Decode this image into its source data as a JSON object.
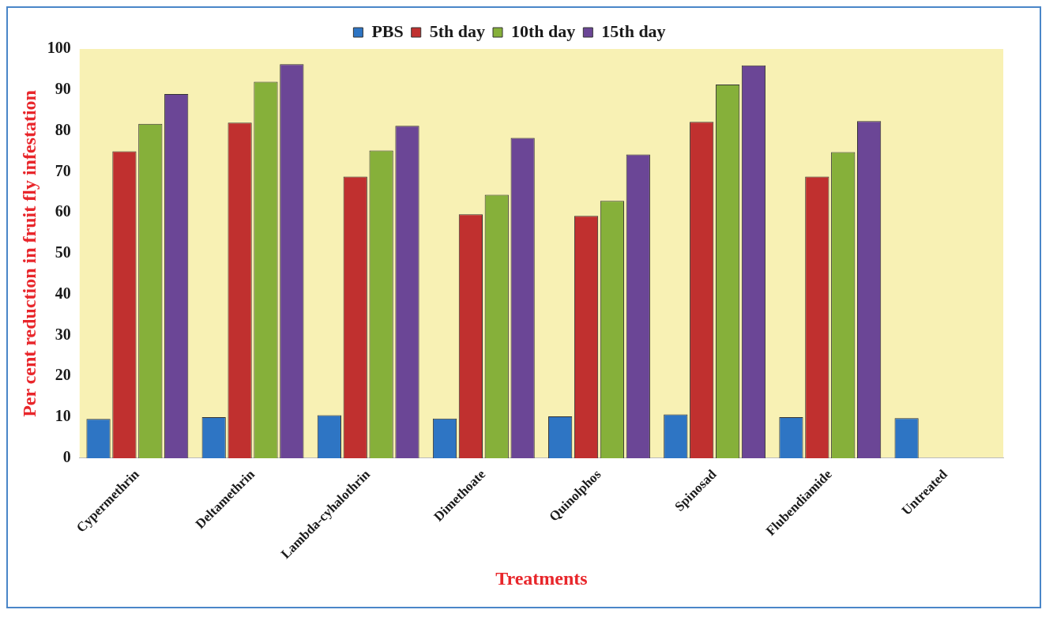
{
  "chart_data": {
    "type": "bar",
    "xlabel": "Treatments",
    "ylabel": "Per cent reduction in fruit fly infestation",
    "categories": [
      "Cypermethrin",
      "Deltamethrin",
      "Lambda-cyhalothrin",
      "Dimethoate",
      "Quinolphos",
      "Spinosad",
      "Flubendiamide",
      "Untreated"
    ],
    "series": [
      {
        "name": "PBS",
        "color": "#2e75c4",
        "values": [
          9.6,
          10,
          10.5,
          9.7,
          10.2,
          10.7,
          10,
          9.8
        ]
      },
      {
        "name": "5th day",
        "color": "#c0302f",
        "values": [
          75,
          82,
          68.8,
          59.6,
          59.2,
          82.2,
          68.8,
          null
        ]
      },
      {
        "name": "10th day",
        "color": "#86b03a",
        "values": [
          81.7,
          92,
          75.2,
          64.4,
          62.9,
          91.3,
          74.8,
          null
        ]
      },
      {
        "name": "15th day",
        "color": "#6b4696",
        "values": [
          89,
          96.3,
          81.2,
          78.3,
          74.2,
          96,
          82.4,
          null
        ]
      }
    ],
    "ylim": [
      0,
      100
    ],
    "yticks": [
      0,
      10,
      20,
      30,
      40,
      50,
      60,
      70,
      80,
      90,
      100
    ],
    "grid": false,
    "legend": "top"
  }
}
